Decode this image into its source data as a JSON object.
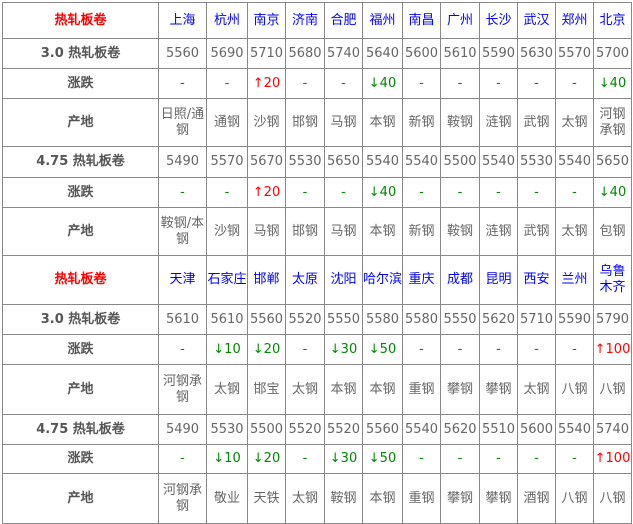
{
  "colors": {
    "title": "#ff0000",
    "city": "#0000ff",
    "up": "#ff0000",
    "down": "#008800",
    "text": "#666666"
  },
  "blocks": [
    {
      "title": "热轧板卷",
      "cities": [
        "上海",
        "杭州",
        "南京",
        "济南",
        "合肥",
        "福州",
        "南昌",
        "广州",
        "长沙",
        "武汉",
        "郑州",
        "北京"
      ],
      "specs": [
        {
          "label": "3.0 热轧板卷",
          "prices": [
            "5560",
            "5690",
            "5710",
            "5680",
            "5740",
            "5640",
            "5600",
            "5610",
            "5590",
            "5630",
            "5570",
            "5700"
          ],
          "change_label": "涨跌",
          "changes": [
            "-",
            "-",
            "↑20",
            "-",
            "-",
            "↓40",
            "-",
            "-",
            "-",
            "-",
            "-",
            "↓40"
          ],
          "origin_label": "产地",
          "origins": [
            "日照/通钢",
            "通钢",
            "沙钢",
            "邯钢",
            "马钢",
            "本钢",
            "新钢",
            "鞍钢",
            "涟钢",
            "武钢",
            "太钢",
            "河钢承钢"
          ]
        },
        {
          "label": "4.75 热轧板卷",
          "prices": [
            "5490",
            "5570",
            "5670",
            "5530",
            "5650",
            "5540",
            "5540",
            "5500",
            "5540",
            "5530",
            "5540",
            "5650"
          ],
          "change_label": "涨跌",
          "changes": [
            "-",
            "-",
            "↑20",
            "-",
            "-",
            "↓40",
            "-",
            "-",
            "-",
            "-",
            "-",
            "↓40"
          ],
          "origin_label": "产地",
          "origins": [
            "鞍钢/本钢",
            "沙钢",
            "马钢",
            "邯钢",
            "马钢",
            "本钢",
            "新钢",
            "鞍钢",
            "涟钢",
            "武钢",
            "太钢",
            "包钢"
          ]
        }
      ]
    },
    {
      "title": "热轧板卷",
      "cities": [
        "天津",
        "石家庄",
        "邯郸",
        "太原",
        "沈阳",
        "哈尔滨",
        "重庆",
        "成都",
        "昆明",
        "西安",
        "兰州",
        "乌鲁木齐"
      ],
      "specs": [
        {
          "label": "3.0 热轧板卷",
          "prices": [
            "5610",
            "5610",
            "5560",
            "5520",
            "5550",
            "5580",
            "5580",
            "5550",
            "5620",
            "5710",
            "5590",
            "5790"
          ],
          "change_label": "涨跌",
          "changes": [
            "-",
            "↓10",
            "↓20",
            "-",
            "↓30",
            "↓50",
            "-",
            "-",
            "-",
            "-",
            "-",
            "↑100"
          ],
          "origin_label": "产地",
          "origins": [
            "河钢承钢",
            "太钢",
            "邯宝",
            "太钢",
            "本钢",
            "本钢",
            "重钢",
            "攀钢",
            "攀钢",
            "太钢",
            "八钢",
            "八钢"
          ]
        },
        {
          "label": "4.75 热轧板卷",
          "prices": [
            "5490",
            "5530",
            "5500",
            "5520",
            "5520",
            "5560",
            "5540",
            "5620",
            "5510",
            "5600",
            "5540",
            "5740"
          ],
          "change_label": "涨跌",
          "changes": [
            "-",
            "↓10",
            "↓20",
            "-",
            "↓30",
            "↓50",
            "-",
            "-",
            "-",
            "-",
            "-",
            "↑100"
          ],
          "origin_label": "产地",
          "origins": [
            "河钢承钢",
            "敬业",
            "天铁",
            "太钢",
            "鞍钢",
            "本钢",
            "重钢",
            "攀钢",
            "攀钢",
            "酒钢",
            "八钢",
            "八钢"
          ]
        }
      ]
    }
  ]
}
